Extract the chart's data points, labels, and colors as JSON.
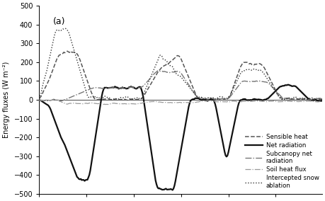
{
  "title": "(a)",
  "ylabel": "Energy fluxes (W m⁻²)",
  "ylim": [
    -500,
    500
  ],
  "yticks": [
    -500,
    -400,
    -300,
    -200,
    -100,
    0,
    100,
    200,
    300,
    400,
    500
  ],
  "n_points": 300,
  "legend_entries": [
    "Sensible heat",
    "Net radiation",
    "Subcanopy net\nradiation",
    "Soil heat flux",
    "Intercepted snow\nablation"
  ],
  "line_styles": [
    "--",
    "-",
    "-.",
    "-.",
    ":"
  ],
  "line_colors": [
    "#555555",
    "#111111",
    "#777777",
    "#999999",
    "#333333"
  ],
  "line_widths": [
    1.1,
    1.6,
    1.0,
    0.9,
    1.0
  ]
}
